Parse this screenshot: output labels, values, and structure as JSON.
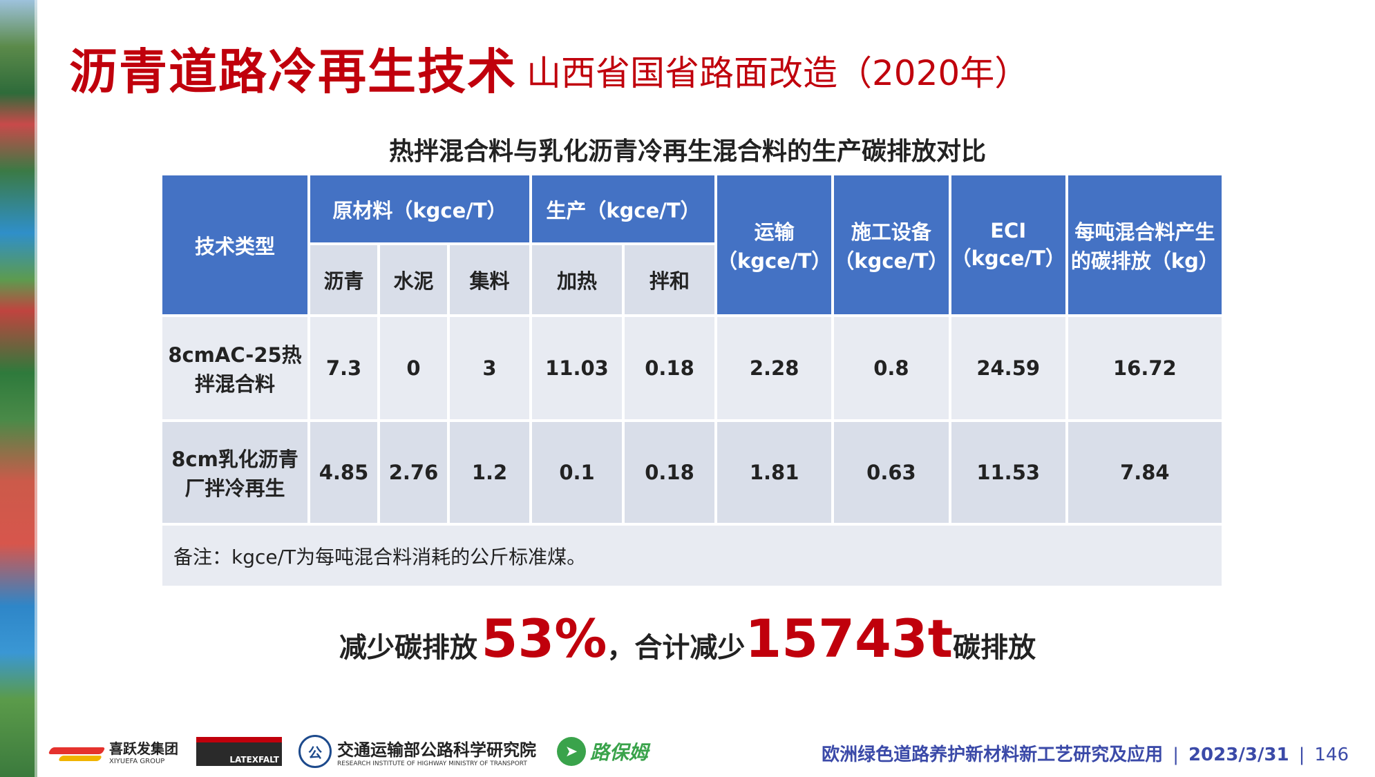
{
  "title": "沥青道路冷再生技术",
  "subtitle": "山西省国省路面改造（2020年）",
  "table_caption": "热拌混合料与乳化沥青冷再生混合料的生产碳排放对比",
  "table": {
    "headers": {
      "tech_type": "技术类型",
      "raw_materials": "原材料（kgce/T）",
      "production": "生产（kgce/T）",
      "transport": [
        "运输",
        "（kgce/T）"
      ],
      "equipment": [
        "施工设备",
        "（kgce/T）"
      ],
      "eci": [
        "ECI",
        "（kgce/T）"
      ],
      "emission": [
        "每吨混合料产生",
        "的碳排放（kg）"
      ],
      "sub": [
        "沥青",
        "水泥",
        "集料",
        "加热",
        "拌和"
      ]
    },
    "rows": [
      {
        "type": [
          "8cmAC-25热",
          "拌混合料"
        ],
        "values": [
          "7.3",
          "0",
          "3",
          "11.03",
          "0.18",
          "2.28",
          "0.8",
          "24.59",
          "16.72"
        ]
      },
      {
        "type": [
          "8cm乳化沥青",
          "厂拌冷再生"
        ],
        "values": [
          "4.85",
          "2.76",
          "1.2",
          "0.1",
          "0.18",
          "1.81",
          "0.63",
          "11.53",
          "7.84"
        ]
      }
    ],
    "note": "备注：kgce/T为每吨混合料消耗的公斤标准煤。"
  },
  "summary": {
    "part1": "减少碳排放",
    "pct": "53%",
    "part2": "，合计减少",
    "amount": "15743t",
    "part3": "碳排放"
  },
  "footer": {
    "logo1_name": "喜跃发集团",
    "logo1_sub": "XIYUEFA GROUP",
    "logo2_name": "LATEXFALT",
    "logo3_mark": "公",
    "logo3_name": "交通运输部公路科学研究院",
    "logo3_sub": "RESEARCH INSTITUTE OF HIGHWAY MINISTRY OF TRANSPORT",
    "logo4_name": "路保姆",
    "project": "欧洲绿色道路养护新材料新工艺研究及应用",
    "date": "2023/3/31",
    "page": "146"
  },
  "icons": [
    "xyf-logo-icon",
    "latexfalt-logo-icon",
    "rioh-logo-icon",
    "lubaomu-logo-icon"
  ],
  "colors": {
    "title": "#c0000c",
    "header": "#4472c4",
    "row_light": "#e8ebf2",
    "row_dark": "#d9dee9",
    "footer": "#3b4aa8"
  }
}
